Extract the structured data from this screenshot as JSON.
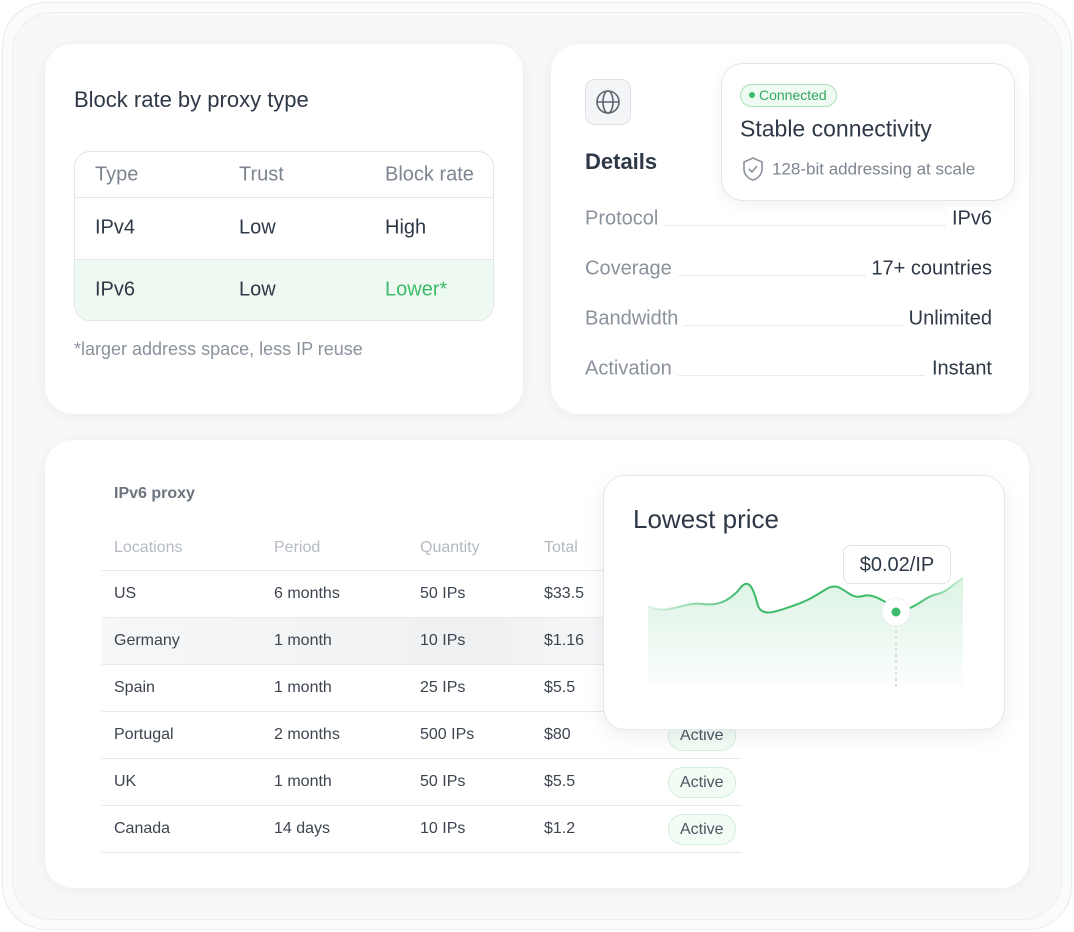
{
  "block_rate_card": {
    "title": "Block rate by proxy type",
    "table": {
      "header": [
        "Type",
        "Trust",
        "Block rate"
      ],
      "rows": [
        [
          "IPv4",
          "Low",
          "High"
        ],
        [
          "IPv6",
          "Low",
          "Lower*"
        ]
      ]
    },
    "footnote": "*larger address space, less IP reuse"
  },
  "details_card": {
    "title": "Details",
    "status_card": {
      "badge": "Connected",
      "title": "Stable connectivity",
      "subtitle": "128-bit addressing at scale"
    },
    "rows": [
      {
        "label": "Protocol",
        "value": "IPv6"
      },
      {
        "label": "Coverage",
        "value": "17+ countries"
      },
      {
        "label": "Bandwidth",
        "value": "Unlimited"
      },
      {
        "label": "Activation",
        "value": "Instant"
      }
    ]
  },
  "proxy_table": {
    "title": "IPv6 proxy",
    "header": [
      "Locations",
      "Period",
      "Quantity",
      "Total"
    ],
    "rows": [
      [
        "US",
        "6 months",
        "50 IPs",
        "$33.5"
      ],
      [
        "Germany",
        "1 month",
        "10 IPs",
        "$1.16"
      ],
      [
        "Spain",
        "1 month",
        "25 IPs",
        "$5.5"
      ],
      [
        "Portugal",
        "2 months",
        "500 IPs",
        "$80",
        "Active"
      ],
      [
        "UK",
        "1 month",
        "50 IPs",
        "$5.5",
        "Active"
      ],
      [
        "Canada",
        "14 days",
        "10 IPs",
        "$1.2",
        "Active"
      ]
    ]
  },
  "price_card": {
    "title": "Lowest price",
    "tooltip": "$0.02/IP"
  }
}
